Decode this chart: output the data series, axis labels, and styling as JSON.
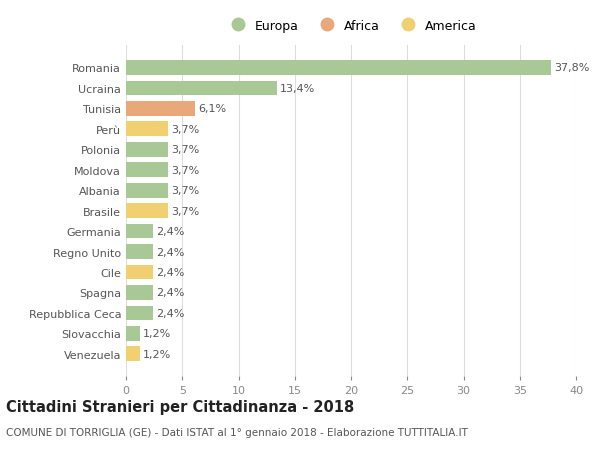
{
  "categories": [
    "Venezuela",
    "Slovacchia",
    "Repubblica Ceca",
    "Spagna",
    "Cile",
    "Regno Unito",
    "Germania",
    "Brasile",
    "Albania",
    "Moldova",
    "Polonia",
    "Perù",
    "Tunisia",
    "Ucraina",
    "Romania"
  ],
  "values": [
    1.2,
    1.2,
    2.4,
    2.4,
    2.4,
    2.4,
    2.4,
    3.7,
    3.7,
    3.7,
    3.7,
    3.7,
    6.1,
    13.4,
    37.8
  ],
  "labels": [
    "1,2%",
    "1,2%",
    "2,4%",
    "2,4%",
    "2,4%",
    "2,4%",
    "2,4%",
    "3,7%",
    "3,7%",
    "3,7%",
    "3,7%",
    "3,7%",
    "6,1%",
    "13,4%",
    "37,8%"
  ],
  "continents": [
    "America",
    "Europa",
    "Europa",
    "Europa",
    "America",
    "Europa",
    "Europa",
    "America",
    "Europa",
    "Europa",
    "Europa",
    "America",
    "Africa",
    "Europa",
    "Europa"
  ],
  "colors": {
    "Europa": "#a8c896",
    "Africa": "#e8a87a",
    "America": "#f0d070"
  },
  "legend_order": [
    "Europa",
    "Africa",
    "America"
  ],
  "legend_colors": {
    "Europa": "#a8c896",
    "Africa": "#e8a87a",
    "America": "#f0d070"
  },
  "xlim": [
    0,
    40
  ],
  "xticks": [
    0,
    5,
    10,
    15,
    20,
    25,
    30,
    35,
    40
  ],
  "title": "Cittadini Stranieri per Cittadinanza - 2018",
  "subtitle": "COMUNE DI TORRIGLIA (GE) - Dati ISTAT al 1° gennaio 2018 - Elaborazione TUTTITALIA.IT",
  "background_color": "#ffffff",
  "grid_color": "#dddddd",
  "bar_height": 0.72,
  "label_fontsize": 8,
  "ylabel_fontsize": 8,
  "xtick_fontsize": 8,
  "title_fontsize": 10.5,
  "subtitle_fontsize": 7.5
}
